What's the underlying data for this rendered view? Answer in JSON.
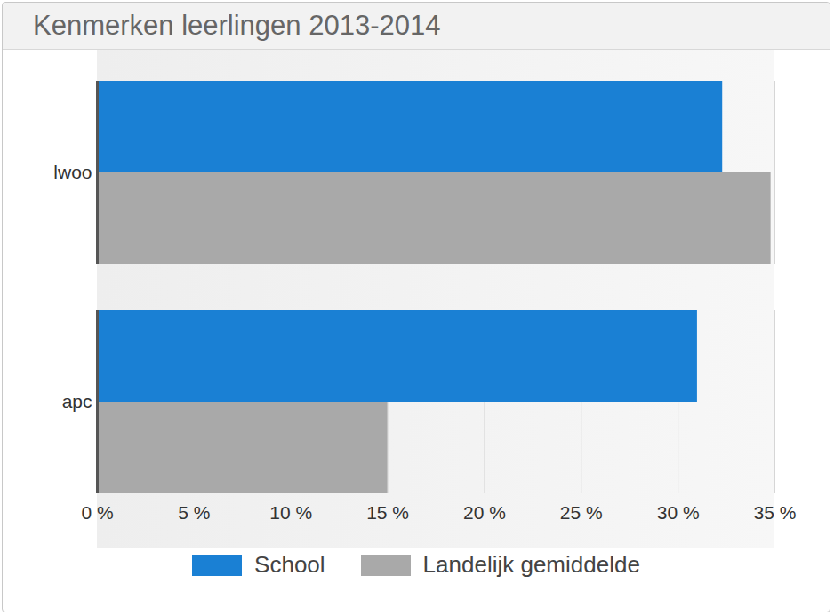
{
  "chart_data": {
    "type": "bar",
    "title": "Kenmerken leerlingen 2013-2014",
    "orientation": "horizontal",
    "categories": [
      "lwoo",
      "apc"
    ],
    "series": [
      {
        "name": "School",
        "color": "#1a80d4",
        "values": [
          32.3,
          31.0
        ]
      },
      {
        "name": "Landelijk gemiddelde",
        "color": "#a9a9a9",
        "values": [
          34.8,
          15.0
        ]
      }
    ],
    "xlim": [
      0,
      35
    ],
    "xticks": [
      {
        "value": 0,
        "label": "0 %"
      },
      {
        "value": 5,
        "label": "5 %"
      },
      {
        "value": 10,
        "label": "10 %"
      },
      {
        "value": 15,
        "label": "15 %"
      },
      {
        "value": 20,
        "label": "20 %"
      },
      {
        "value": 25,
        "label": "25 %"
      },
      {
        "value": 30,
        "label": "30 %"
      },
      {
        "value": 35,
        "label": "35 %"
      }
    ],
    "grid": true,
    "legend": "bottom"
  }
}
